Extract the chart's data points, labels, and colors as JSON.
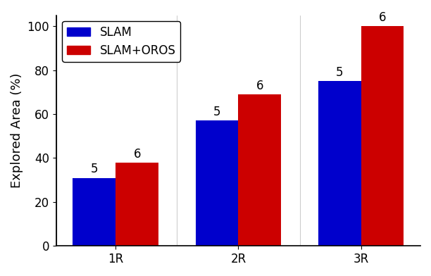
{
  "categories": [
    "1R",
    "2R",
    "3R"
  ],
  "slam_values": [
    31,
    57,
    75
  ],
  "oros_values": [
    38,
    69,
    100
  ],
  "slam_labels": [
    "5",
    "5",
    "5"
  ],
  "oros_labels": [
    "6",
    "6",
    "6"
  ],
  "slam_color": "#0000cc",
  "oros_color": "#cc0000",
  "ylabel": "Explored Area (%)",
  "ylim": [
    0,
    105
  ],
  "yticks": [
    0,
    20,
    40,
    60,
    80,
    100
  ],
  "legend_labels": [
    "SLAM",
    "SLAM+OROS"
  ],
  "bar_width": 0.35,
  "label_fontsize": 12,
  "tick_fontsize": 12,
  "legend_fontsize": 12,
  "ylabel_fontsize": 13
}
